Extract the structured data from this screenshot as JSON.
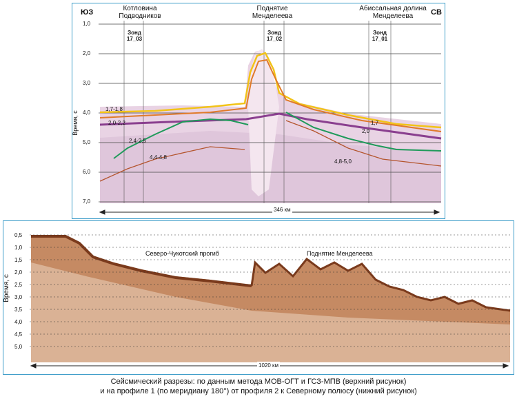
{
  "top": {
    "dir_left": "ЮЗ",
    "dir_right": "СВ",
    "regions": [
      {
        "line1": "Котловина",
        "line2": "Подводников"
      },
      {
        "line1": "Поднятие",
        "line2": "Менделеева"
      },
      {
        "line1": "Абиссальная долина",
        "line2": "Менделеева"
      }
    ],
    "sondes": [
      {
        "line1": "Зонд",
        "line2": "17_03"
      },
      {
        "line1": "Зонд",
        "line2": "17_02"
      },
      {
        "line1": "Зонд",
        "line2": "17_01"
      }
    ],
    "y_axis_label": "Время, с",
    "y_ticks": [
      "1,0",
      "2,0",
      "3,0",
      "4,0",
      "5,0",
      "6,0",
      "7,0"
    ],
    "velocity_labels": [
      "1,7-1,8",
      "2,0-2,2",
      "2,4-2,5",
      "4,4-4,8",
      "1,7",
      "2,0",
      "4,8-5,0"
    ],
    "distance": "346 км"
  },
  "bottom": {
    "y_axis_label": "Время, с",
    "y_ticks": [
      "0,5",
      "1,0",
      "1,5",
      "2,0",
      "2,5",
      "3,0",
      "3,5",
      "4,0",
      "4,5",
      "5,0"
    ],
    "regions": [
      "Северо-Чукотский прогиб",
      "Поднятие Менделеева"
    ],
    "distance": "1020 км"
  },
  "caption": {
    "line1": "Сейсмический разрезы: по данным метода МОВ-ОГТ и ГСЗ-МПВ (верхний рисунок)",
    "line2": "и на профиле 1 (по меридиану 180°) от профиля 2 к Северному полюсу (нижний рисунок)"
  },
  "colors": {
    "frame": "#3a9bc8",
    "reflector_yellow": "#f2c318",
    "reflector_orange": "#e07a2a",
    "reflector_green": "#1f9a5a",
    "seismic_purple": "#8a3f8f",
    "seismic_brown": "#8b4a2a"
  }
}
